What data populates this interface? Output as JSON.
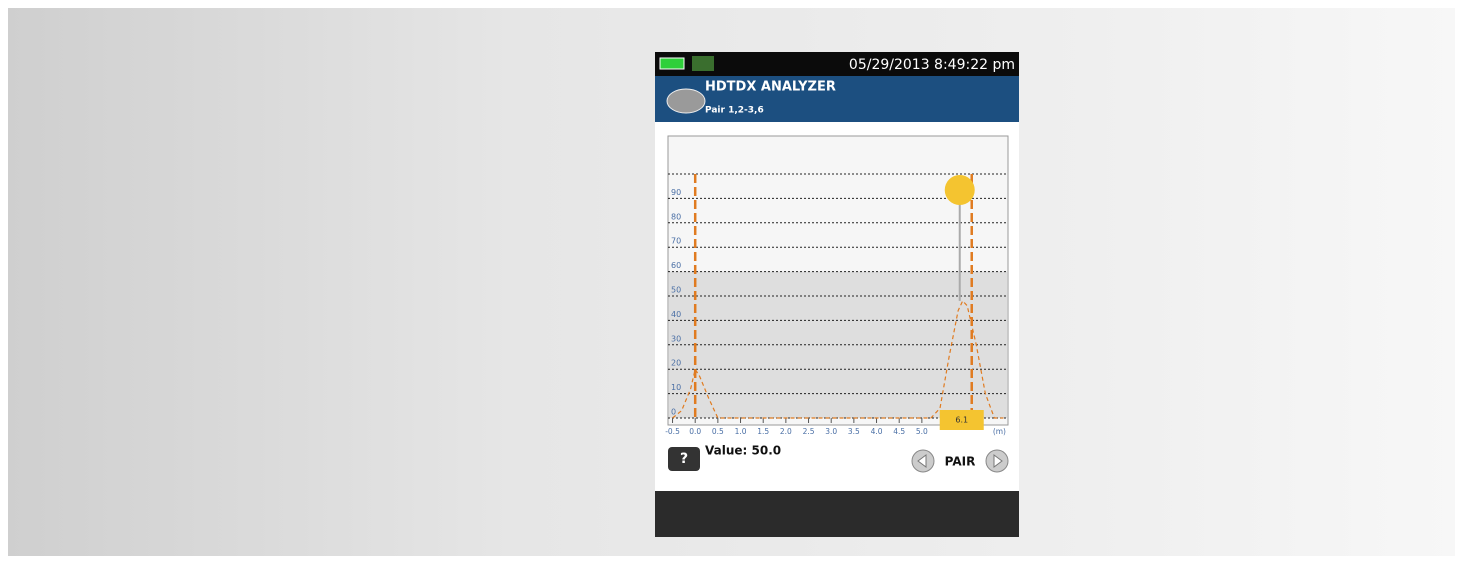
{
  "status": {
    "datetime": "05/29/2013 8:49:22 pm"
  },
  "header": {
    "title": "HDTDX ANALYZER",
    "subtitle": "Pair 1,2-3,6"
  },
  "chart_data": {
    "type": "line",
    "x": [
      -0.5,
      -0.3,
      -0.1,
      0.0,
      0.1,
      0.3,
      0.5,
      0.7,
      5.2,
      5.4,
      5.6,
      5.8,
      5.9,
      6.0,
      6.2,
      6.4,
      6.6,
      6.8
    ],
    "series": [
      {
        "color": "#e07b20",
        "values": [
          0,
          3,
          12,
          20,
          17,
          8,
          0,
          0,
          0,
          4,
          25,
          44,
          48,
          46,
          30,
          10,
          0,
          0
        ]
      }
    ],
    "xlim": [
      -0.6,
      6.9
    ],
    "xticks": [
      -0.5,
      {
        "value": 0,
        "label": "0.0"
      },
      0.5,
      {
        "value": 1,
        "label": "1.0"
      },
      1.5,
      {
        "value": 2,
        "label": "2.0"
      },
      2.5,
      {
        "value": 3,
        "label": "3.0"
      },
      3.5,
      {
        "value": 4,
        "label": "4.0"
      },
      4.5,
      {
        "value": 5,
        "label": "5.0"
      }
    ],
    "x_unit": "(m)",
    "ylim": [
      0,
      100
    ],
    "yticks": [
      0,
      10,
      20,
      30,
      40,
      50,
      60,
      70,
      80,
      90
    ],
    "shade_below": 60,
    "cursor_positions": [
      0,
      6.1
    ],
    "grid": true
  },
  "footer": {
    "readout": "Value: 50.0",
    "help": "?",
    "button": "PAIR"
  }
}
